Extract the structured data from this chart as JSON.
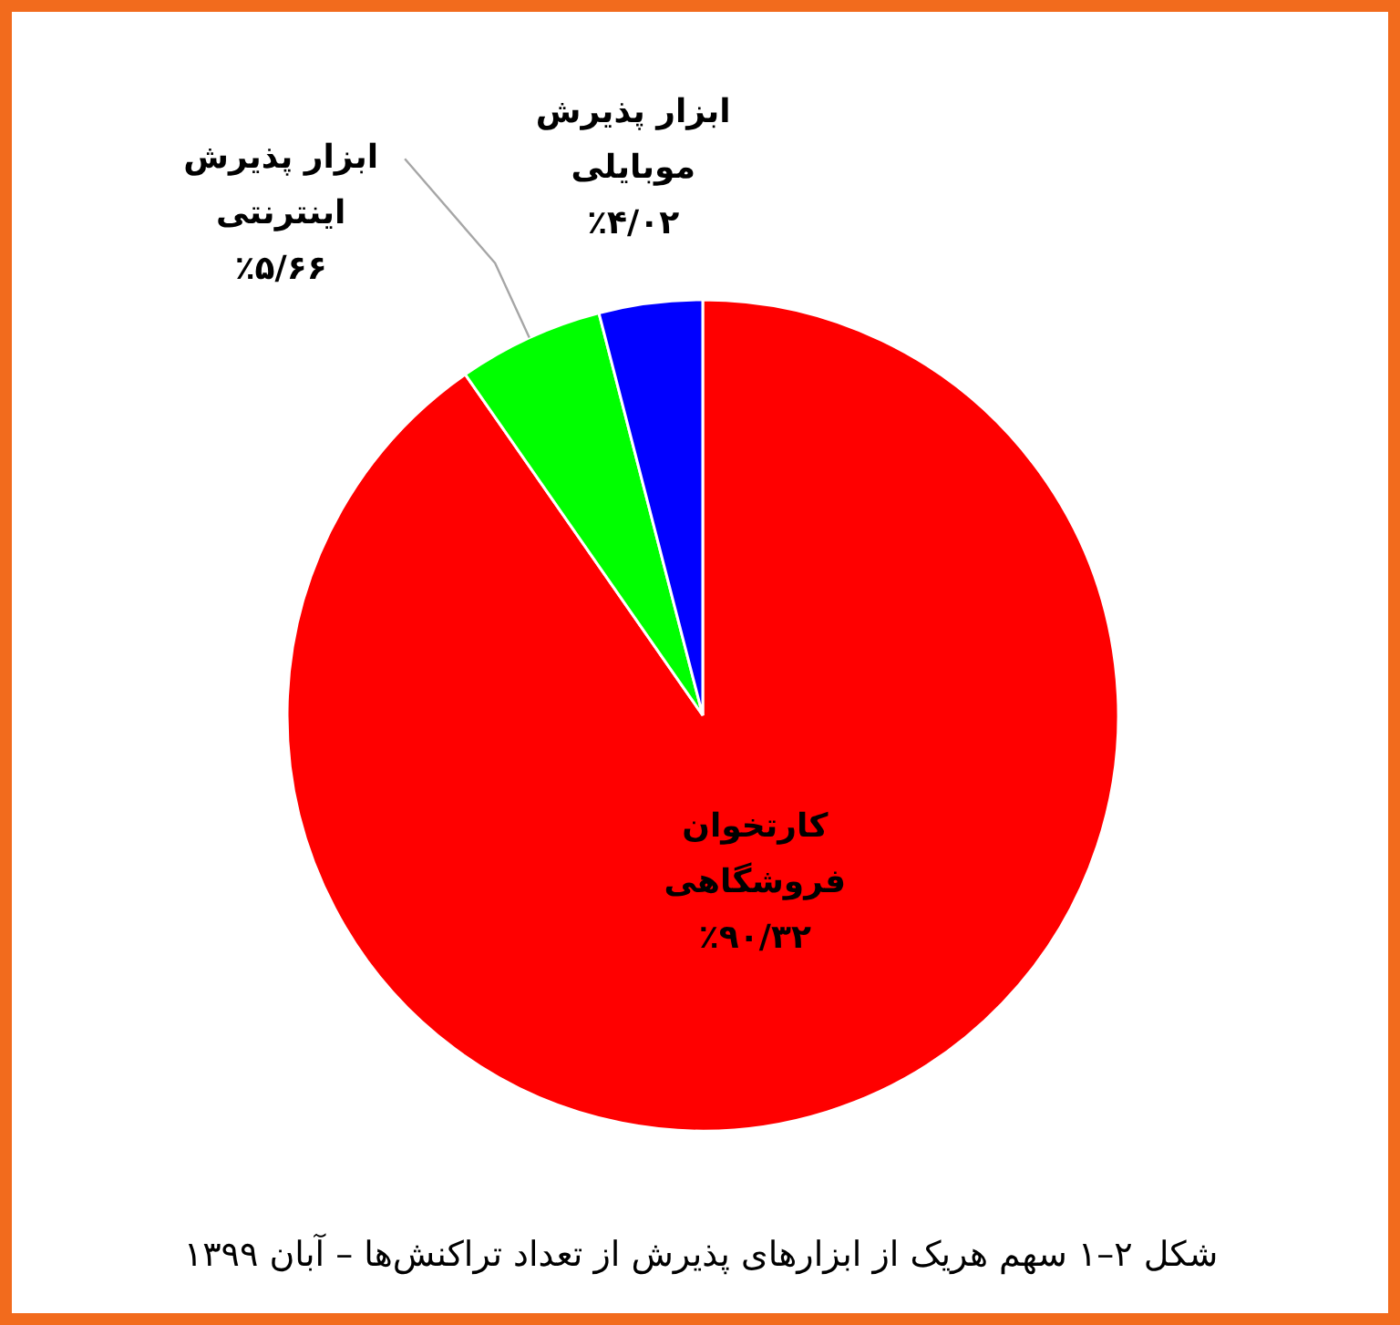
{
  "chart_data": {
    "type": "pie",
    "title": "شکل ۲–۱ سهم هریک از ابزارهای پذیرش از تعداد تراکنش‌ها – آبان ۱۳۹۹",
    "categories": [
      "کارتخوان فروشگاهی",
      "ابزار پذیرش اینترنتی",
      "ابزار پذیرش موبایلی"
    ],
    "values": [
      90.32,
      5.66,
      4.02
    ],
    "colors": [
      "#ff0000",
      "#00ff00",
      "#0000ff"
    ],
    "value_labels": [
      "٪۹۰/۳۲",
      "٪۵/۶۶",
      "٪۴/۰۲"
    ]
  }
}
